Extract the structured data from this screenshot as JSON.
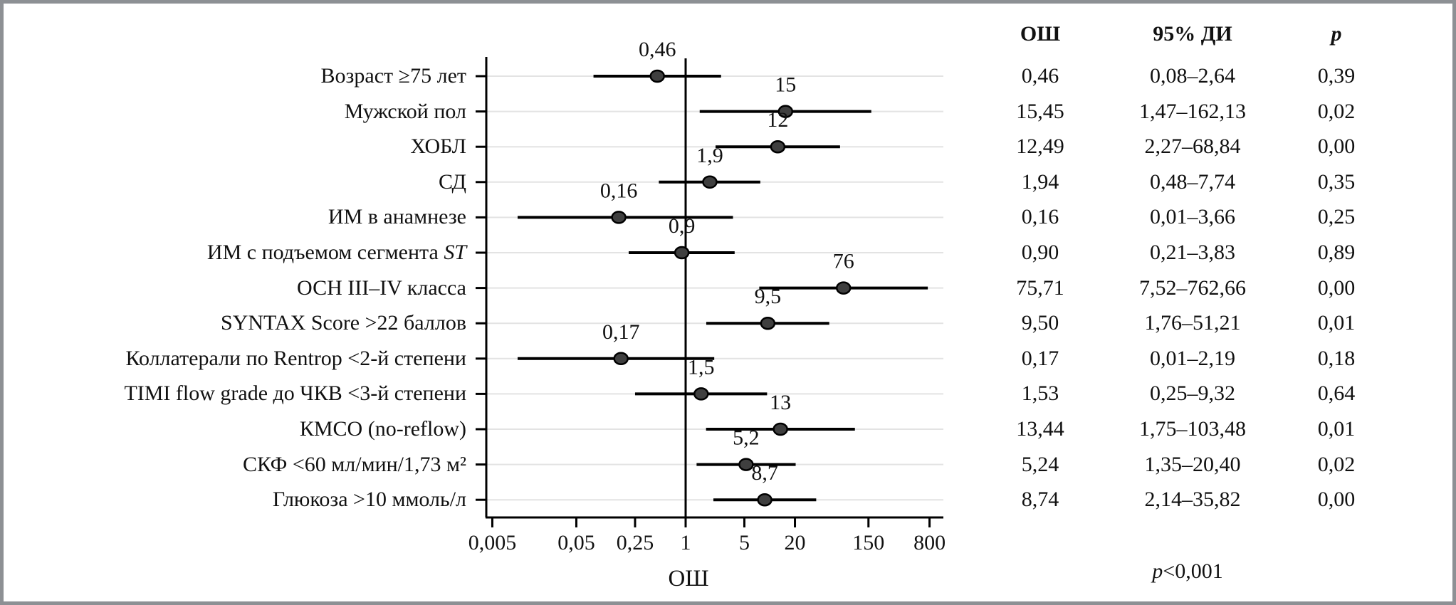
{
  "table": {
    "headers": {
      "or": "ОШ",
      "ci": "95% ДИ",
      "p": "p"
    },
    "footer": {
      "p": "p",
      "rest": "<0,001"
    }
  },
  "chart_data": {
    "type": "scatter",
    "subtype": "forest-plot",
    "title": "",
    "xlabel": "ОШ",
    "x_scale": "log",
    "xlim": [
      0.004,
      1200
    ],
    "reference_line": 1,
    "grid": "horizontal-light-per-row",
    "legend": "none",
    "x_ticks": [
      {
        "value": 0.005,
        "label": "0,005"
      },
      {
        "value": 0.05,
        "label": "0,05"
      },
      {
        "value": 0.25,
        "label": "0,25"
      },
      {
        "value": 1,
        "label": "1"
      },
      {
        "value": 5,
        "label": "5"
      },
      {
        "value": 20,
        "label": "20"
      },
      {
        "value": 150,
        "label": "150"
      },
      {
        "value": 800,
        "label": "800"
      }
    ],
    "rows": [
      {
        "label": "Возраст ≥75 лет",
        "or": 0.46,
        "ci_low": 0.08,
        "ci_high": 2.64,
        "point_label": "0,46",
        "or_text": "0,46",
        "ci_text": "0,08–2,64",
        "p_text": "0,39"
      },
      {
        "label": "Мужской пол",
        "or": 15.45,
        "ci_low": 1.47,
        "ci_high": 162.13,
        "point_label": "15",
        "or_text": "15,45",
        "ci_text": "1,47–162,13",
        "p_text": "0,02"
      },
      {
        "label": "ХОБЛ",
        "or": 12.49,
        "ci_low": 2.27,
        "ci_high": 68.84,
        "point_label": "12",
        "or_text": "12,49",
        "ci_text": "2,27–68,84",
        "p_text": "0,00"
      },
      {
        "label": "СД",
        "or": 1.94,
        "ci_low": 0.48,
        "ci_high": 7.74,
        "point_label": "1,9",
        "or_text": "1,94",
        "ci_text": "0,48–7,74",
        "p_text": "0,35"
      },
      {
        "label": "ИМ в анамнезе",
        "or": 0.16,
        "ci_low": 0.01,
        "ci_high": 3.66,
        "point_label": "0,16",
        "or_text": "0,16",
        "ci_text": "0,01–3,66",
        "p_text": "0,25"
      },
      {
        "label": "ИМ с подъемом сегмента ",
        "label_italic": "ST",
        "or": 0.9,
        "ci_low": 0.21,
        "ci_high": 3.83,
        "point_label": "0,9",
        "or_text": "0,90",
        "ci_text": "0,21–3,83",
        "p_text": "0,89"
      },
      {
        "label": "ОСН III–IV класса",
        "or": 75.71,
        "ci_low": 7.52,
        "ci_high": 762.66,
        "point_label": "76",
        "or_text": "75,71",
        "ci_text": "7,52–762,66",
        "p_text": "0,00"
      },
      {
        "label": "SYNTAX Score >22 баллов",
        "or": 9.5,
        "ci_low": 1.76,
        "ci_high": 51.21,
        "point_label": "9,5",
        "or_text": "9,50",
        "ci_text": "1,76–51,21",
        "p_text": "0,01"
      },
      {
        "label": "Коллатерали по Rentrop <2-й степени",
        "or": 0.17,
        "ci_low": 0.01,
        "ci_high": 2.19,
        "point_label": "0,17",
        "or_text": "0,17",
        "ci_text": "0,01–2,19",
        "p_text": "0,18"
      },
      {
        "label": "TIMI flow grade до ЧКВ <3-й степени",
        "or": 1.53,
        "ci_low": 0.25,
        "ci_high": 9.32,
        "point_label": "1,5",
        "or_text": "1,53",
        "ci_text": "0,25–9,32",
        "p_text": "0,64"
      },
      {
        "label": "КМСО (no-reflow)",
        "or": 13.44,
        "ci_low": 1.75,
        "ci_high": 103.48,
        "point_label": "13",
        "or_text": "13,44",
        "ci_text": "1,75–103,48",
        "p_text": "0,01"
      },
      {
        "label": "СКФ <60 мл/мин/1,73 м²",
        "or": 5.24,
        "ci_low": 1.35,
        "ci_high": 20.4,
        "point_label": "5,2",
        "or_text": "5,24",
        "ci_text": "1,35–20,40",
        "p_text": "0,02"
      },
      {
        "label": "Глюкоза >10 ммоль/л",
        "or": 8.74,
        "ci_low": 2.14,
        "ci_high": 35.82,
        "point_label": "8,7",
        "or_text": "8,74",
        "ci_text": "2,14–35,82",
        "p_text": "0,00"
      }
    ],
    "marker": {
      "fill": "#3f3f3f",
      "stroke": "#000000"
    },
    "colors": {
      "text": "#111111",
      "gridline": "#e3e3e3",
      "axis": "#000000",
      "frame_border": "#8d9094"
    }
  }
}
